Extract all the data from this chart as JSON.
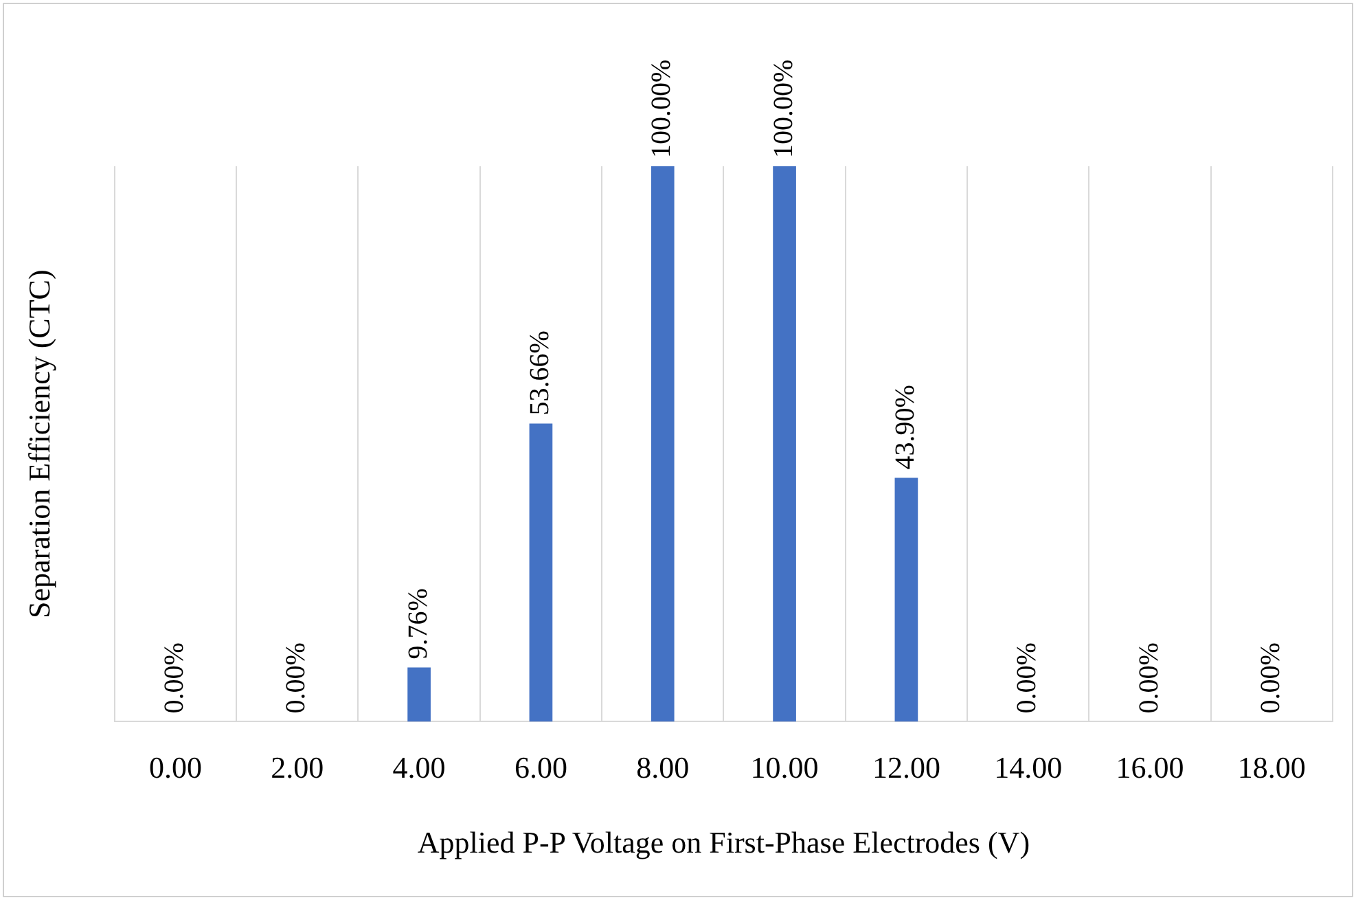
{
  "chart_data": {
    "type": "bar",
    "xlabel": "Applied P-P Voltage on First-Phase Electrodes (V)",
    "ylabel": "Separation Efficiency (CTC)",
    "categories": [
      "0.00",
      "2.00",
      "4.00",
      "6.00",
      "8.00",
      "10.00",
      "12.00",
      "14.00",
      "16.00",
      "18.00"
    ],
    "values": [
      0,
      0,
      9.76,
      53.66,
      100,
      100,
      43.9,
      0,
      0,
      0
    ],
    "value_labels": [
      "0.00%",
      "0.00%",
      "9.76%",
      "53.66%",
      "100.00%",
      "100.00%",
      "43.90%",
      "0.00%",
      "0.00%",
      "0.00%"
    ],
    "color": "#4472c4",
    "grid": "x",
    "legend": false,
    "tick_labels": "x"
  }
}
